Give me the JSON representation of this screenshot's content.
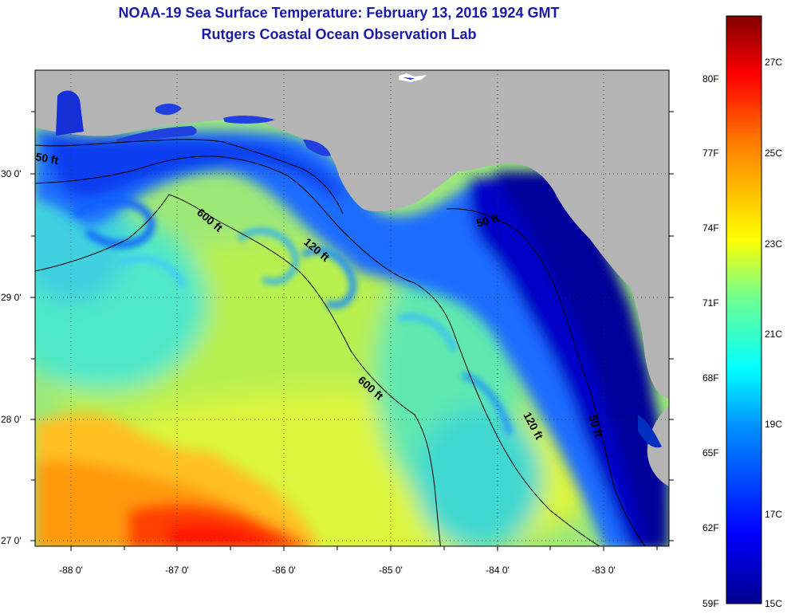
{
  "title": {
    "line1": "NOAA-19 Sea Surface Temperature:  February 13, 2016 1924 GMT",
    "line2": "Rutgers Coastal Ocean Observation Lab"
  },
  "map": {
    "lon_ticks": [
      "-88 0'",
      "-87 0'",
      "-86 0'",
      "-85 0'",
      "-84 0'",
      "-83 0'"
    ],
    "lat_ticks": [
      "30 0'",
      "29 0'",
      "28 0'",
      "27 0'"
    ],
    "contour_labels": [
      "50 ft",
      "600 ft",
      "120 ft",
      "50 ft",
      "600 ft",
      "120 ft",
      "50 ft"
    ]
  },
  "colorbar": {
    "fahrenheit": [
      "80F",
      "77F",
      "74F",
      "71F",
      "68F",
      "65F",
      "62F",
      "59F"
    ],
    "celsius": [
      "27C",
      "25C",
      "23C",
      "21C",
      "19C",
      "17C",
      "15C"
    ]
  },
  "colors": {
    "title": "#1a1aa8",
    "land": "#b4b4b4"
  }
}
